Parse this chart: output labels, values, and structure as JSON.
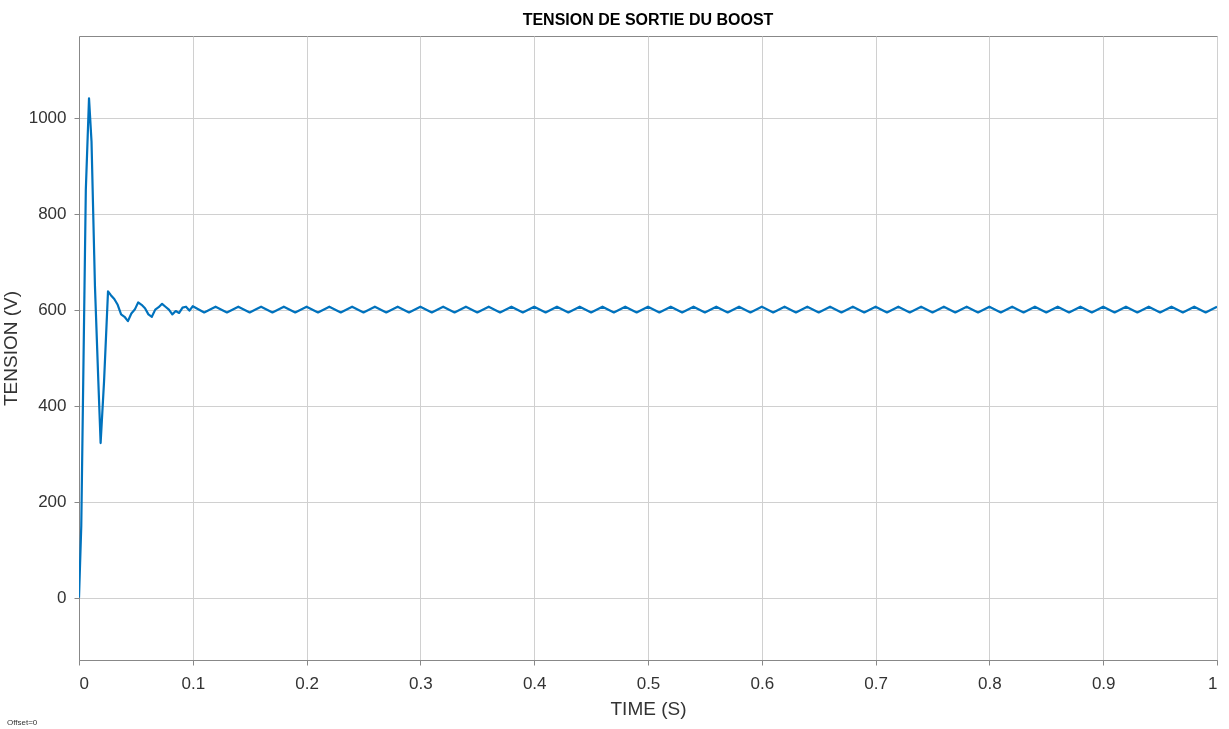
{
  "chart_data": {
    "type": "line",
    "title": "TENSION DE SORTIE DU BOOST",
    "xlabel": "TIME (S)",
    "ylabel": "TENSION (V)",
    "annotations": [
      "Offset=0"
    ],
    "xlim": [
      0,
      1
    ],
    "xticks": [
      0,
      0.1,
      0.2,
      0.3,
      0.4,
      0.5,
      0.6,
      0.7,
      0.8,
      0.9,
      1
    ],
    "ylim": [
      -130,
      1170
    ],
    "yticks": [
      0,
      200,
      400,
      600,
      800,
      1000
    ],
    "grid": true,
    "line_style": "solid",
    "series": [
      {
        "color": "#0072bd",
        "x": [
          0,
          0.002,
          0.004,
          0.006,
          0.0088,
          0.011,
          0.014,
          0.017,
          0.019,
          0.022,
          0.0255,
          0.028,
          0.031,
          0.034,
          0.037,
          0.04,
          0.043,
          0.046,
          0.049,
          0.052,
          0.055,
          0.058,
          0.061,
          0.064,
          0.067,
          0.07,
          0.073,
          0.076,
          0.079,
          0.082,
          0.085,
          0.088,
          0.091,
          0.094,
          0.097,
          0.1,
          0.11,
          0.12,
          0.13,
          0.14,
          0.15,
          0.16,
          0.17,
          0.18,
          0.19,
          0.2,
          0.21,
          0.22,
          0.23,
          0.24,
          0.25,
          0.26,
          0.27,
          0.28,
          0.29,
          0.3,
          0.31,
          0.32,
          0.33,
          0.34,
          0.35,
          0.36,
          0.37,
          0.38,
          0.39,
          0.4,
          0.41,
          0.42,
          0.43,
          0.44,
          0.45,
          0.46,
          0.47,
          0.48,
          0.49,
          0.5,
          0.51,
          0.52,
          0.53,
          0.54,
          0.55,
          0.56,
          0.57,
          0.58,
          0.59,
          0.6,
          0.61,
          0.62,
          0.63,
          0.64,
          0.65,
          0.66,
          0.67,
          0.68,
          0.69,
          0.7,
          0.71,
          0.72,
          0.73,
          0.74,
          0.75,
          0.76,
          0.77,
          0.78,
          0.79,
          0.8,
          0.81,
          0.82,
          0.83,
          0.84,
          0.85,
          0.86,
          0.87,
          0.88,
          0.89,
          0.9,
          0.91,
          0.92,
          0.93,
          0.94,
          0.95,
          0.96,
          0.97,
          0.98,
          0.99,
          1.0
        ],
        "values": [
          0,
          150,
          500,
          850,
          1040,
          950,
          650,
          450,
          322,
          450,
          638,
          630,
          622,
          610,
          590,
          585,
          576,
          592,
          600,
          615,
          610,
          603,
          590,
          585,
          600,
          605,
          612,
          606,
          600,
          590,
          597,
          593,
          604,
          606,
          598,
          607,
          594,
          606,
          594,
          606,
          594,
          606,
          594,
          606,
          594,
          606,
          594,
          606,
          594,
          606,
          594,
          606,
          594,
          606,
          594,
          606,
          594,
          606,
          594,
          606,
          594,
          606,
          594,
          606,
          594,
          606,
          594,
          606,
          594,
          606,
          594,
          606,
          594,
          606,
          594,
          606,
          594,
          606,
          594,
          606,
          594,
          606,
          594,
          606,
          594,
          606,
          594,
          606,
          594,
          606,
          594,
          606,
          594,
          606,
          594,
          606,
          594,
          606,
          594,
          606,
          594,
          606,
          594,
          606,
          594,
          606,
          594,
          606,
          594,
          606,
          594,
          606,
          594,
          606,
          594,
          606,
          594,
          606,
          594,
          606,
          594,
          606,
          594,
          606,
          594,
          606
        ]
      }
    ]
  }
}
